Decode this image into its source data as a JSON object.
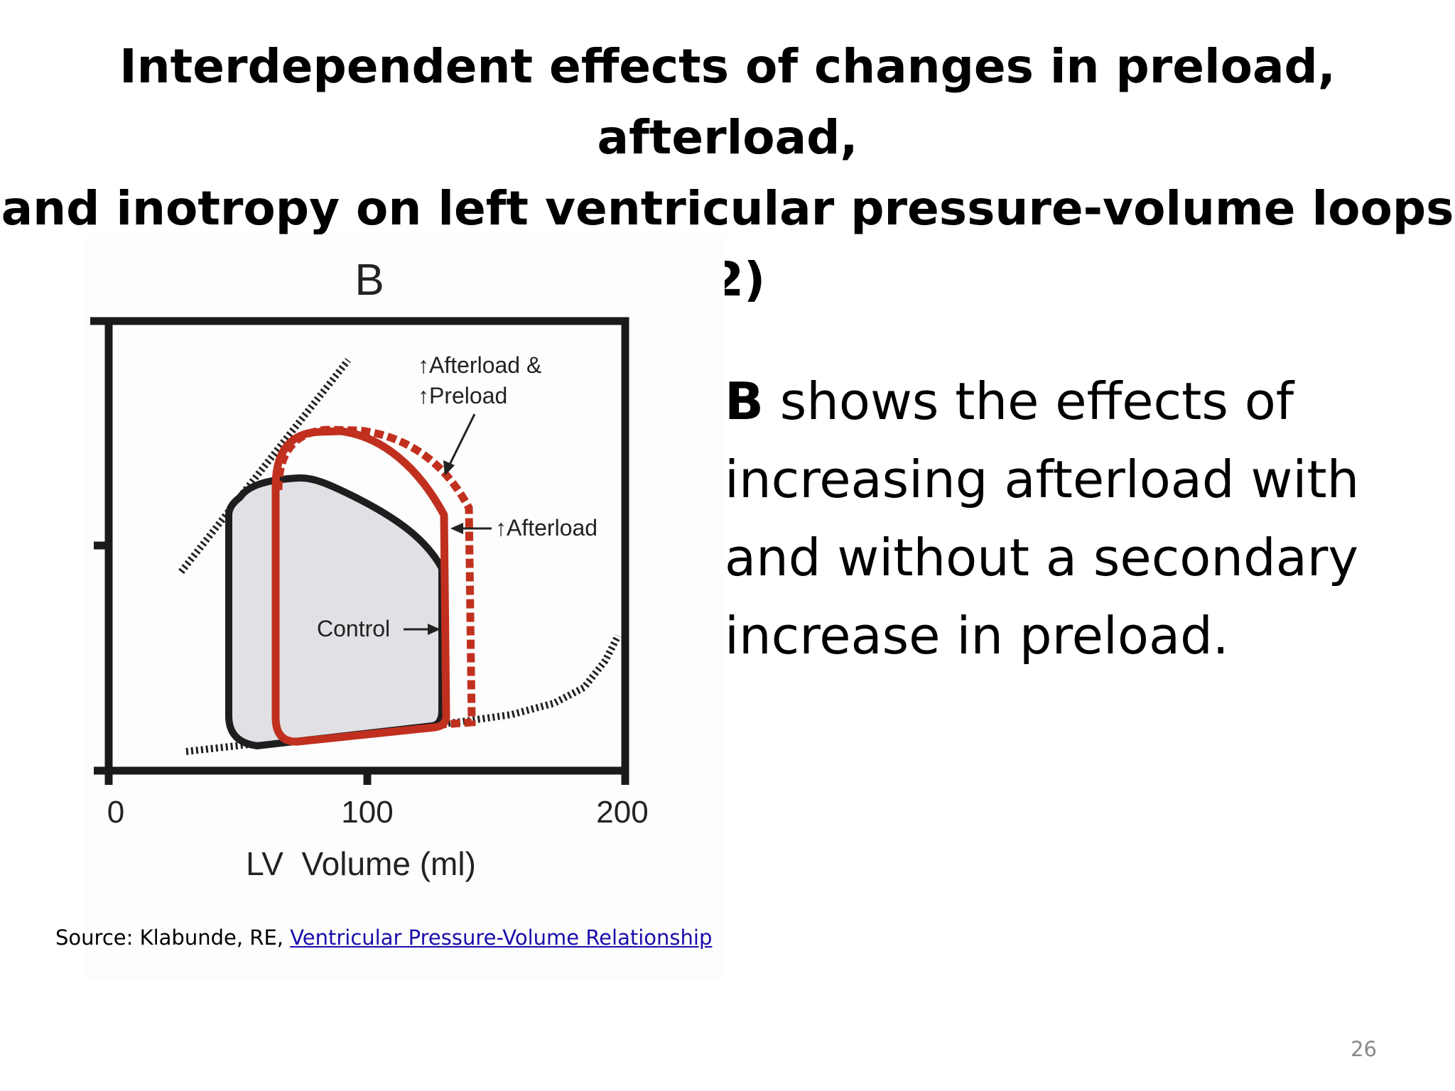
{
  "title": {
    "line1": "Interdependent effects of changes in preload, afterload,",
    "line2": "and inotropy on left ventricular pressure-volume loops (2)"
  },
  "diagram": {
    "panel_letter": "B",
    "x_axis_label": "LV  Volume (ml)",
    "x_tick_labels": [
      "0",
      "100",
      "200"
    ],
    "annotations": {
      "afterload_preload_line1": "↑Afterload &",
      "afterload_preload_line2": "↑Preload",
      "afterload": "↑Afterload",
      "control": "Control"
    },
    "colors": {
      "control_loop": "#1e1e1e",
      "afterload_loops": "#c1301f",
      "loop_fill": "#e1e1e5"
    }
  },
  "body": {
    "bold_lead": "B",
    "text": " shows the effects of increasing afterload with and without a secondary increase in preload."
  },
  "source": {
    "prefix": "Source: Klabunde, RE, ",
    "link_text": "Ventricular Pressure-Volume Relationship"
  },
  "page_number": "26"
}
